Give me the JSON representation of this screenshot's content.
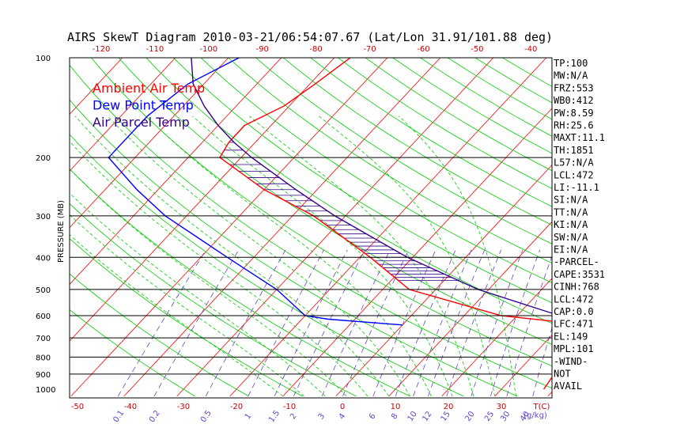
{
  "chart_data": {
    "type": "line",
    "title": "AIRS SkewT Diagram 2010-03-21/06:54:07.67 (Lat/Lon 31.91/101.88 deg)",
    "ylabel": "PRESSURE (MB)",
    "xlabel_top": "",
    "xlabel_bottom_unit": "T(C)",
    "mixing_ratio_unit": "(g/kg)",
    "pressure_levels": [
      100,
      200,
      300,
      400,
      500,
      600,
      700,
      800,
      900,
      1000
    ],
    "top_temp_ticks": [
      -120,
      -110,
      -100,
      -90,
      -80,
      -70,
      -60,
      -50,
      -40
    ],
    "bottom_temp_ticks": [
      -50,
      -40,
      -30,
      -20,
      -10,
      0,
      10,
      20,
      30
    ],
    "mixing_ratio_ticks": [
      "0.1",
      "0.2",
      "0.5",
      "1",
      "1.5",
      "2",
      "3",
      "4",
      "6",
      "8",
      "10",
      "12",
      "15",
      "20",
      "25",
      "30",
      "40"
    ],
    "ylim": [
      1000,
      100
    ],
    "legend": [
      "Ambient Air Temp",
      "Dew Point Temp",
      "Air Parcel Temp"
    ],
    "colors": {
      "ambient": "#ff0000",
      "dewpoint": "#0000ff",
      "parcel": "#330088",
      "isotherm": "#ff0000",
      "dry_adiabat": "#00cc00",
      "moist_adiabat": "#00cc00",
      "mixing_ratio": "#6644cc",
      "hatch": "#330088"
    },
    "series": [
      {
        "name": "Ambient Air Temp",
        "points": [
          [
            1000,
            38
          ],
          [
            640,
            35
          ],
          [
            600,
            17
          ],
          [
            500,
            -5
          ],
          [
            400,
            -18
          ],
          [
            300,
            -36
          ],
          [
            250,
            -50
          ],
          [
            200,
            -64
          ],
          [
            180,
            -65
          ],
          [
            160,
            -65
          ],
          [
            140,
            -61
          ],
          [
            120,
            -59
          ],
          [
            100,
            -57
          ]
        ]
      },
      {
        "name": "Dew Point Temp",
        "points": [
          [
            640,
            0
          ],
          [
            615,
            -15
          ],
          [
            600,
            -20
          ],
          [
            500,
            -30
          ],
          [
            400,
            -45
          ],
          [
            300,
            -64
          ],
          [
            250,
            -74
          ],
          [
            200,
            -85
          ],
          [
            150,
            -85
          ],
          [
            120,
            -83
          ],
          [
            100,
            -78
          ]
        ]
      },
      {
        "name": "Air Parcel Temp",
        "points": [
          [
            640,
            35
          ],
          [
            600,
            28
          ],
          [
            500,
            8
          ],
          [
            400,
            -11
          ],
          [
            300,
            -32
          ],
          [
            250,
            -44
          ],
          [
            200,
            -58
          ],
          [
            180,
            -64
          ],
          [
            160,
            -70
          ],
          [
            140,
            -76
          ],
          [
            120,
            -82
          ],
          [
            100,
            -87
          ]
        ]
      }
    ],
    "sidebar": [
      "TP:100",
      "MW:N/A",
      "FRZ:553",
      "WB0:412",
      "PW:8.59",
      "RH:25.6",
      "MAXT:11.1",
      "TH:1851",
      "L57:N/A",
      "LCL:472",
      "LI:-11.1",
      "SI:N/A",
      "TT:N/A",
      "KI:N/A",
      "SW:N/A",
      "EI:N/A",
      "-PARCEL-",
      "CAPE:3531",
      "CINH:768",
      "LCL:472",
      "CAP:0.0",
      "LFC:471",
      "EL:149",
      "MPL:101",
      "-WIND-",
      "NOT",
      "AVAIL"
    ]
  }
}
